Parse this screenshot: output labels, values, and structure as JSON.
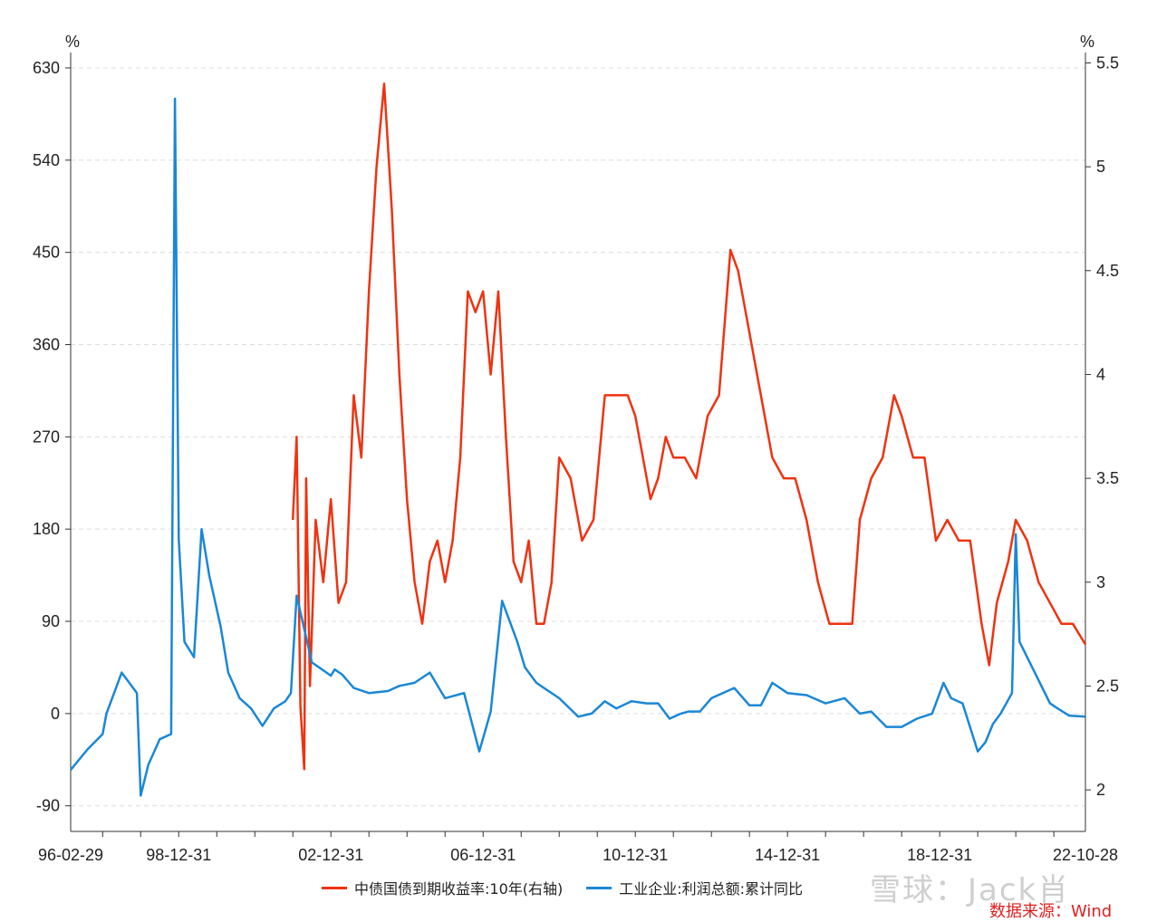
{
  "chart_data": {
    "type": "line",
    "y_left": {
      "unit": "%",
      "ticks": [
        -90,
        0,
        90,
        180,
        270,
        360,
        450,
        540,
        630
      ],
      "range": [
        -115,
        645
      ]
    },
    "y_right": {
      "unit": "%",
      "ticks": [
        2,
        2.5,
        3,
        3.5,
        4,
        4.5,
        5,
        5.5
      ],
      "range": [
        1.8,
        5.55
      ]
    },
    "x_ticks": [
      "96-02-29",
      "98-12-31",
      "02-12-31",
      "06-12-31",
      "10-12-31",
      "14-12-31",
      "18-12-31",
      "22-10-28"
    ],
    "x_range": [
      1996.16,
      2022.83
    ],
    "grid": true,
    "legend_position": "bottom",
    "series": [
      {
        "name": "中债国债到期收益率:10年(右轴)",
        "axis": "right",
        "color": "#ee3311",
        "x": [
          2002.0,
          2002.1,
          2002.2,
          2002.3,
          2002.35,
          2002.45,
          2002.6,
          2002.8,
          2003.0,
          2003.2,
          2003.4,
          2003.6,
          2003.8,
          2004.0,
          2004.2,
          2004.4,
          2004.6,
          2004.8,
          2005.0,
          2005.2,
          2005.4,
          2005.6,
          2005.8,
          2006.0,
          2006.2,
          2006.4,
          2006.6,
          2006.8,
          2007.0,
          2007.2,
          2007.4,
          2007.6,
          2007.8,
          2008.0,
          2008.2,
          2008.4,
          2008.6,
          2008.8,
          2008.9,
          2009.0,
          2009.3,
          2009.6,
          2009.9,
          2010.2,
          2010.5,
          2010.8,
          2011.0,
          2011.2,
          2011.4,
          2011.6,
          2011.8,
          2012.0,
          2012.3,
          2012.6,
          2012.9,
          2013.2,
          2013.5,
          2013.7,
          2013.9,
          2014.1,
          2014.3,
          2014.6,
          2014.9,
          2015.2,
          2015.5,
          2015.8,
          2016.1,
          2016.4,
          2016.7,
          2016.9,
          2017.2,
          2017.5,
          2017.8,
          2018.0,
          2018.3,
          2018.6,
          2018.9,
          2019.2,
          2019.5,
          2019.8,
          2020.1,
          2020.3,
          2020.5,
          2020.8,
          2021.0,
          2021.3,
          2021.6,
          2021.9,
          2022.2,
          2022.5,
          2022.83
        ],
        "y": [
          3.3,
          3.7,
          2.4,
          2.1,
          3.5,
          2.5,
          3.3,
          3.0,
          3.4,
          2.9,
          3.0,
          3.9,
          3.6,
          4.4,
          5.0,
          5.4,
          4.8,
          4.0,
          3.4,
          3.0,
          2.8,
          3.1,
          3.2,
          3.0,
          3.2,
          3.6,
          4.4,
          4.3,
          4.4,
          4.0,
          4.4,
          3.7,
          3.1,
          3.0,
          3.2,
          2.8,
          2.8,
          3.0,
          3.3,
          3.6,
          3.5,
          3.2,
          3.3,
          3.9,
          3.9,
          3.9,
          3.8,
          3.6,
          3.4,
          3.5,
          3.7,
          3.6,
          3.6,
          3.5,
          3.8,
          3.9,
          4.6,
          4.5,
          4.3,
          4.1,
          3.9,
          3.6,
          3.5,
          3.5,
          3.3,
          3.0,
          2.8,
          2.8,
          2.8,
          3.3,
          3.5,
          3.6,
          3.9,
          3.8,
          3.6,
          3.6,
          3.2,
          3.3,
          3.2,
          3.2,
          2.8,
          2.6,
          2.9,
          3.1,
          3.3,
          3.2,
          3.0,
          2.9,
          2.8,
          2.8,
          2.7
        ]
      },
      {
        "name": "工业企业:利润总额:累计同比",
        "axis": "left",
        "color": "#1a87d6",
        "x": [
          1996.16,
          1996.6,
          1997.0,
          1997.1,
          1997.5,
          1997.7,
          1997.9,
          1998.0,
          1998.2,
          1998.5,
          1998.8,
          1998.9,
          1999.0,
          1999.15,
          1999.4,
          1999.6,
          1999.8,
          1999.95,
          2000.1,
          2000.3,
          2000.6,
          2000.9,
          2001.2,
          2001.5,
          2001.8,
          2001.95,
          2002.1,
          2002.5,
          2003.0,
          2003.1,
          2003.3,
          2003.6,
          2004.0,
          2004.5,
          2004.8,
          2005.2,
          2005.6,
          2006.0,
          2006.5,
          2006.9,
          2007.2,
          2007.5,
          2007.9,
          2008.1,
          2008.4,
          2008.6,
          2009.0,
          2009.5,
          2009.85,
          2010.2,
          2010.5,
          2010.9,
          2011.3,
          2011.6,
          2011.9,
          2012.2,
          2012.4,
          2012.7,
          2013.0,
          2013.6,
          2014.0,
          2014.3,
          2014.6,
          2015.0,
          2015.5,
          2016.0,
          2016.5,
          2016.9,
          2017.2,
          2017.6,
          2018.0,
          2018.4,
          2018.8,
          2019.1,
          2019.3,
          2019.6,
          2020.0,
          2020.2,
          2020.4,
          2020.6,
          2020.9,
          2021.0,
          2021.1,
          2021.5,
          2021.9,
          2022.1,
          2022.4,
          2022.83
        ],
        "y": [
          -55,
          -35,
          -20,
          0,
          40,
          30,
          20,
          -80,
          -50,
          -25,
          -20,
          600,
          170,
          70,
          55,
          180,
          135,
          110,
          85,
          40,
          15,
          5,
          -12,
          5,
          12,
          20,
          115,
          50,
          37,
          43,
          38,
          25,
          20,
          22,
          27,
          30,
          40,
          15,
          20,
          -37,
          2,
          110,
          70,
          45,
          30,
          25,
          15,
          -3,
          0,
          12,
          5,
          12,
          10,
          10,
          -5,
          0,
          2,
          2,
          15,
          25,
          8,
          8,
          30,
          20,
          18,
          10,
          15,
          0,
          2,
          -13,
          -13,
          -5,
          0,
          30,
          15,
          10,
          -37,
          -28,
          -10,
          0,
          20,
          175,
          70,
          40,
          10,
          5,
          -2,
          -3
        ]
      }
    ]
  },
  "legend": {
    "items": [
      "中债国债到期收益率:10年(右轴)",
      "工业企业:利润总额:累计同比"
    ]
  },
  "watermark": "雪球：Jack肖",
  "source": "数据来源：Wind"
}
